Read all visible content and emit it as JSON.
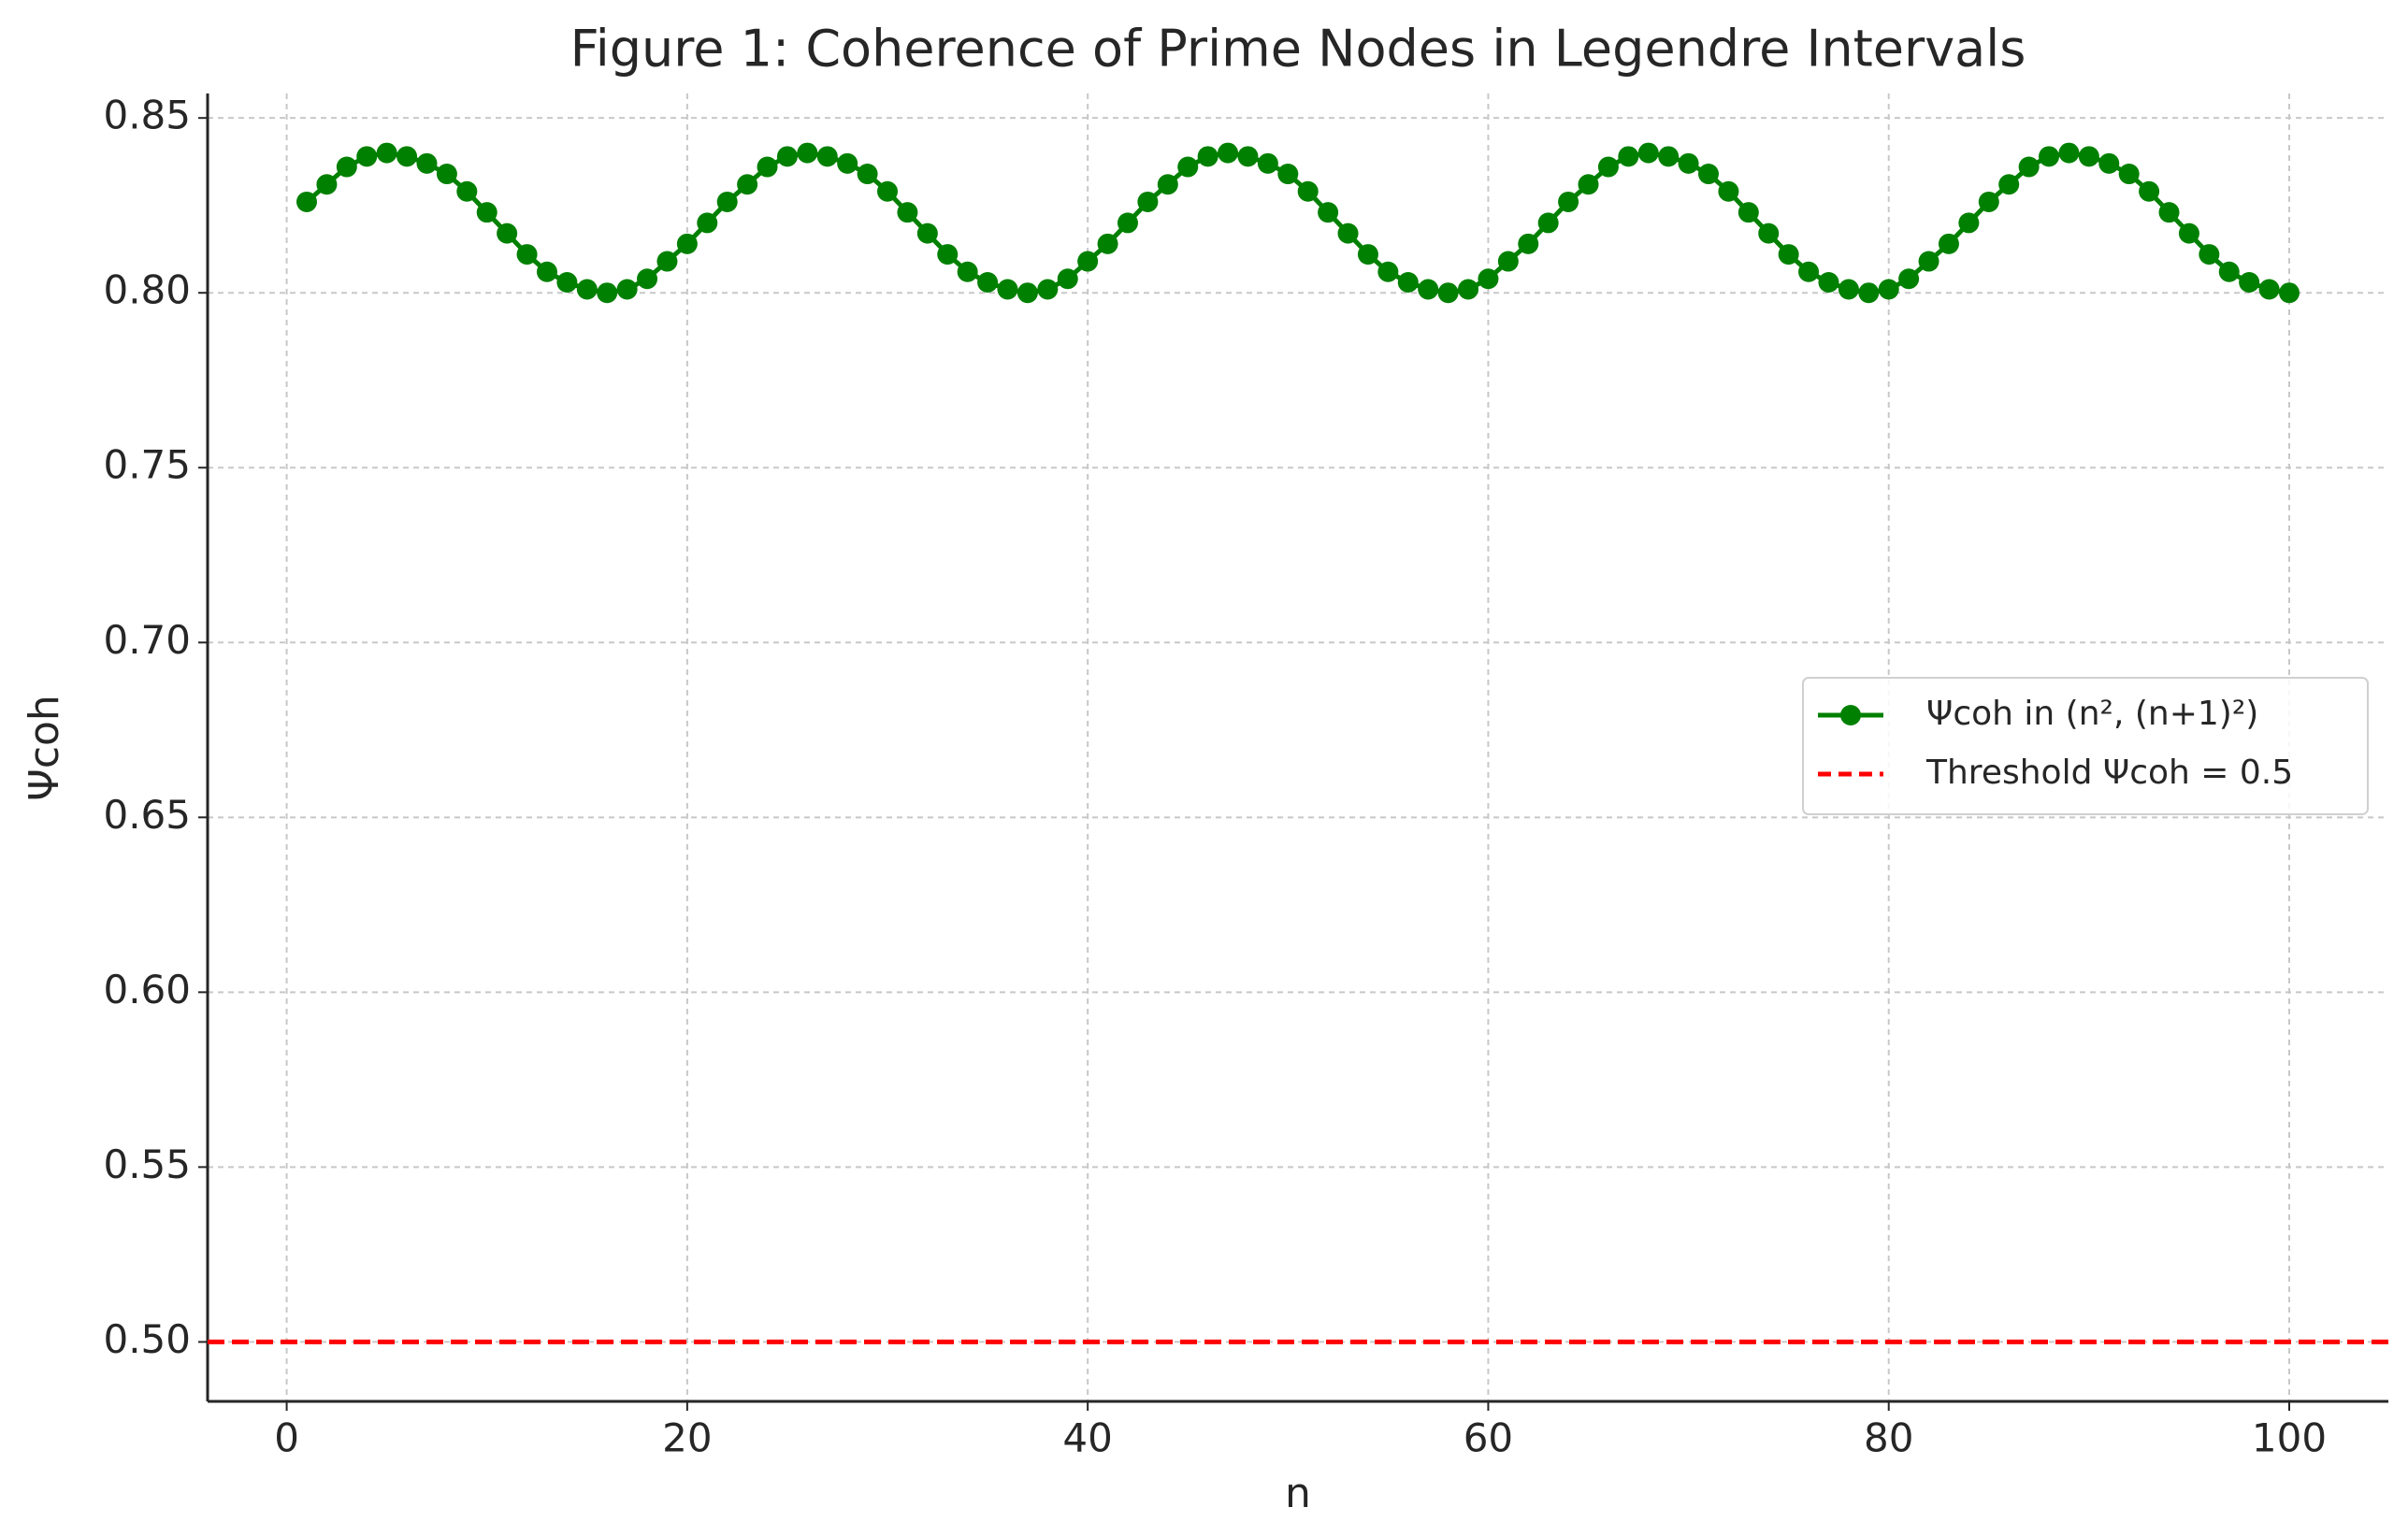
{
  "chart_data": {
    "type": "line",
    "title": "Figure 1: Coherence of Prime Nodes in Legendre Intervals",
    "xlabel": "n",
    "ylabel": "Ψcoh",
    "x": [
      1,
      2,
      3,
      4,
      5,
      6,
      7,
      8,
      9,
      10,
      11,
      12,
      13,
      14,
      15,
      16,
      17,
      18,
      19,
      20,
      21,
      22,
      23,
      24,
      25,
      26,
      27,
      28,
      29,
      30,
      31,
      32,
      33,
      34,
      35,
      36,
      37,
      38,
      39,
      40,
      41,
      42,
      43,
      44,
      45,
      46,
      47,
      48,
      49,
      50,
      51,
      52,
      53,
      54,
      55,
      56,
      57,
      58,
      59,
      60,
      61,
      62,
      63,
      64,
      65,
      66,
      67,
      68,
      69,
      70,
      71,
      72,
      73,
      74,
      75,
      76,
      77,
      78,
      79,
      80,
      81,
      82,
      83,
      84,
      85,
      86,
      87,
      88,
      89,
      90,
      91,
      92,
      93,
      94,
      95,
      96,
      97,
      98,
      99,
      100
    ],
    "series": [
      {
        "name": "Ψcoh in (n², (n+1)²)",
        "color": "#008000",
        "values": [
          0.826,
          0.831,
          0.836,
          0.839,
          0.84,
          0.839,
          0.837,
          0.834,
          0.829,
          0.823,
          0.817,
          0.811,
          0.806,
          0.803,
          0.801,
          0.8,
          0.801,
          0.804,
          0.809,
          0.814,
          0.82,
          0.826,
          0.831,
          0.836,
          0.839,
          0.84,
          0.839,
          0.837,
          0.834,
          0.829,
          0.823,
          0.817,
          0.811,
          0.806,
          0.803,
          0.801,
          0.8,
          0.801,
          0.804,
          0.809,
          0.814,
          0.82,
          0.826,
          0.831,
          0.836,
          0.839,
          0.84,
          0.839,
          0.837,
          0.834,
          0.829,
          0.823,
          0.817,
          0.811,
          0.806,
          0.803,
          0.801,
          0.8,
          0.801,
          0.804,
          0.809,
          0.814,
          0.82,
          0.826,
          0.831,
          0.836,
          0.839,
          0.84,
          0.839,
          0.837,
          0.834,
          0.829,
          0.823,
          0.817,
          0.811,
          0.806,
          0.803,
          0.801,
          0.8,
          0.801,
          0.804,
          0.809,
          0.814,
          0.82,
          0.826,
          0.831,
          0.836,
          0.839,
          0.84,
          0.839,
          0.837,
          0.834,
          0.829,
          0.823,
          0.817,
          0.811,
          0.806,
          0.803,
          0.801,
          0.8
        ]
      }
    ],
    "threshold": {
      "name": "Threshold Ψcoh = 0.5",
      "value": 0.5,
      "color": "#ff0000"
    },
    "xlim": [
      -3.95,
      104.95
    ],
    "ylim": [
      0.483,
      0.857
    ],
    "xticks": [
      0,
      20,
      40,
      60,
      80,
      100
    ],
    "yticks": [
      {
        "value": 0.5,
        "label": "0.50"
      },
      0.55,
      {
        "value": 0.6,
        "label": "0.60"
      },
      0.65,
      {
        "value": 0.7,
        "label": "0.70"
      },
      0.75,
      {
        "value": 0.8,
        "label": "0.80"
      },
      0.85
    ],
    "grid": true,
    "legend": "right"
  }
}
